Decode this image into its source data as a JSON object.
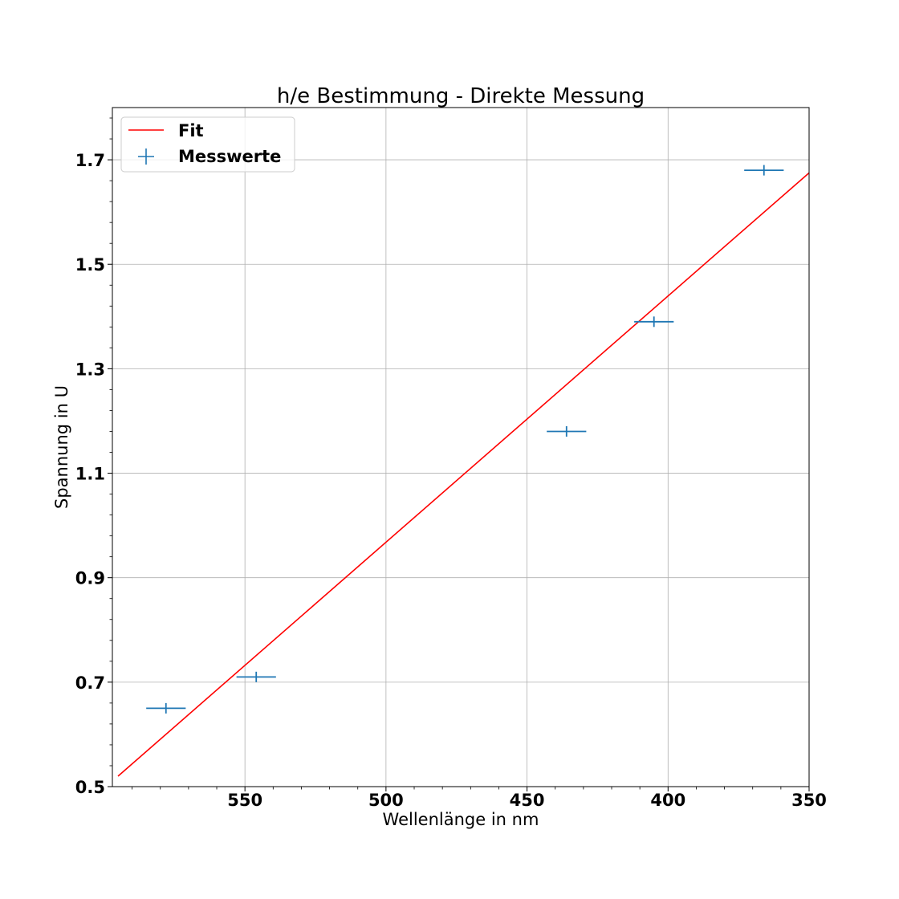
{
  "chart_data": {
    "type": "scatter",
    "title": "h/e Bestimmung - Direkte Messung",
    "xlabel": "Wellenlänge in nm",
    "ylabel": "Spannung in U",
    "x_inverted": true,
    "xlim": [
      597,
      350
    ],
    "ylim": [
      0.5,
      1.8
    ],
    "xticks": [
      550,
      500,
      450,
      400,
      350
    ],
    "xtick_labels": [
      "550",
      "500",
      "450",
      "400",
      "350"
    ],
    "yticks": [
      0.5,
      0.7,
      0.9,
      1.1,
      1.3,
      1.5,
      1.7
    ],
    "ytick_labels": [
      "0.5",
      "0.7",
      "0.9",
      "1.1",
      "1.3",
      "1.5",
      "1.7"
    ],
    "grid": true,
    "legend_position": "top-left",
    "series": [
      {
        "name": "Messwerte",
        "kind": "errorbar",
        "color": "#1f77b4",
        "x": [
          578,
          546,
          436,
          405,
          366
        ],
        "y": [
          0.65,
          0.71,
          1.18,
          1.39,
          1.68
        ],
        "xerr": [
          7,
          7,
          7,
          7,
          7
        ],
        "yerr": [
          0.01,
          0.01,
          0.01,
          0.01,
          0.01
        ]
      },
      {
        "name": "Fit",
        "kind": "line",
        "color": "#ff0000",
        "x": [
          595,
          350
        ],
        "y": [
          0.52,
          1.675
        ]
      }
    ]
  }
}
